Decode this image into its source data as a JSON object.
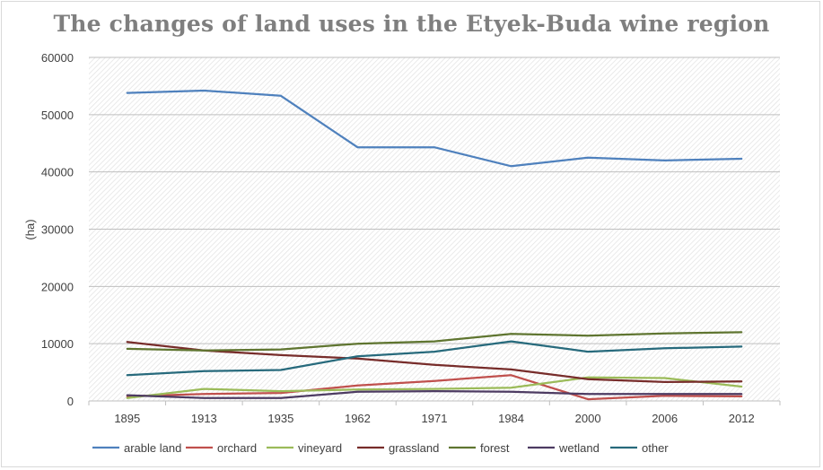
{
  "chart_data": {
    "type": "line",
    "title": "The changes of land uses in the Etyek-Buda wine region",
    "xlabel": "",
    "ylabel": "(ha)",
    "categories": [
      "1895",
      "1913",
      "1935",
      "1962",
      "1971",
      "1984",
      "2000",
      "2006",
      "2012"
    ],
    "ylim": [
      0,
      60000
    ],
    "yticks": [
      "0",
      "10000",
      "20000",
      "30000",
      "40000",
      "50000",
      "60000"
    ],
    "legend_position": "bottom",
    "series": [
      {
        "name": "arable land",
        "color": "#4f81bd",
        "values": [
          53800,
          54200,
          53300,
          44300,
          44300,
          41000,
          42500,
          42000,
          42300
        ]
      },
      {
        "name": "orchard",
        "color": "#c0504d",
        "values": [
          800,
          1200,
          1400,
          2700,
          3500,
          4500,
          300,
          900,
          800
        ]
      },
      {
        "name": "vineyard",
        "color": "#9bbb59",
        "values": [
          500,
          2100,
          1700,
          2000,
          2100,
          2300,
          4100,
          4000,
          2500
        ]
      },
      {
        "name": "grassland",
        "color": "#772c2a",
        "values": [
          10300,
          8800,
          8000,
          7400,
          6300,
          5500,
          3800,
          3300,
          3400
        ]
      },
      {
        "name": "forest",
        "color": "#5f7530",
        "values": [
          9100,
          8800,
          9000,
          10000,
          10400,
          11700,
          11400,
          11800,
          12000
        ]
      },
      {
        "name": "wetland",
        "color": "#4d3b62",
        "values": [
          1000,
          500,
          500,
          1600,
          1700,
          1600,
          1200,
          1200,
          1200
        ]
      },
      {
        "name": "other",
        "color": "#276a7c",
        "values": [
          4500,
          5200,
          5400,
          7800,
          8600,
          10400,
          8600,
          9200,
          9500
        ]
      }
    ]
  }
}
